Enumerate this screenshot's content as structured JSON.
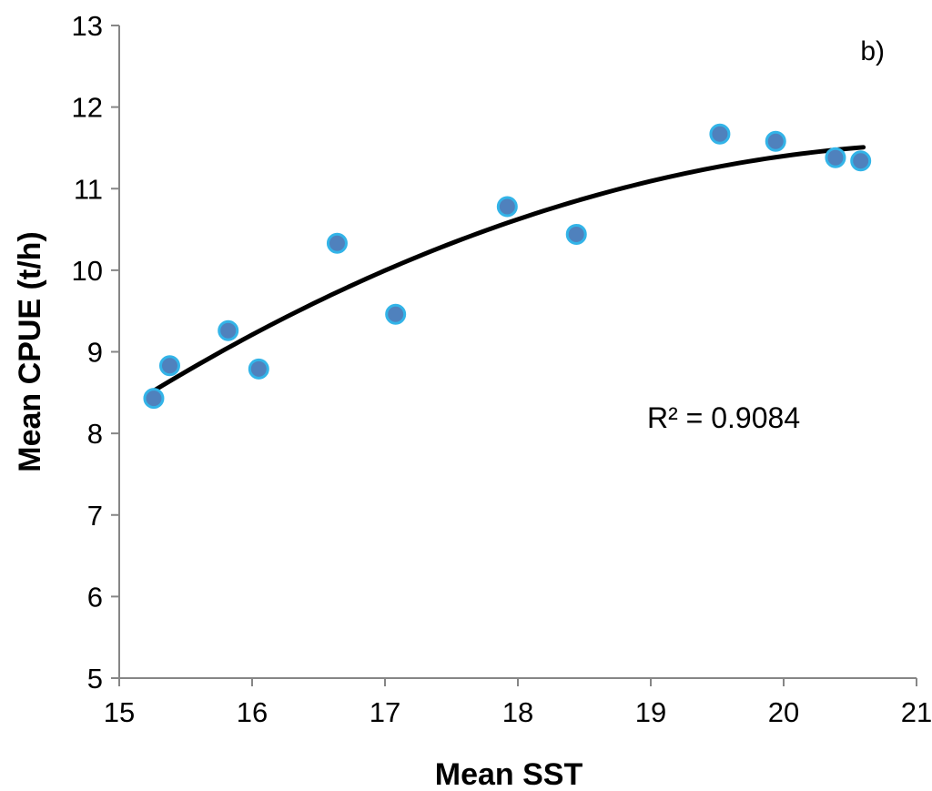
{
  "chart_data": {
    "type": "scatter",
    "title": "",
    "panel_label": "b)",
    "xlabel": "Mean SST",
    "ylabel": "Mean CPUE (t/h)",
    "xlim": [
      15,
      21
    ],
    "ylim": [
      5,
      13
    ],
    "xticks": [
      15,
      16,
      17,
      18,
      19,
      20,
      21
    ],
    "yticks": [
      5,
      6,
      7,
      8,
      9,
      10,
      11,
      12,
      13
    ],
    "grid": false,
    "legend": "none",
    "series": [
      {
        "marker_color": "#4f81bd",
        "marker_edge_color": "#33b4e8",
        "points": [
          {
            "x": 15.26,
            "y": 8.43
          },
          {
            "x": 15.38,
            "y": 8.83
          },
          {
            "x": 15.82,
            "y": 9.26
          },
          {
            "x": 16.05,
            "y": 8.79
          },
          {
            "x": 16.64,
            "y": 10.33
          },
          {
            "x": 17.08,
            "y": 9.46
          },
          {
            "x": 17.92,
            "y": 10.78
          },
          {
            "x": 18.44,
            "y": 10.44
          },
          {
            "x": 19.52,
            "y": 11.67
          },
          {
            "x": 19.94,
            "y": 11.58
          },
          {
            "x": 20.39,
            "y": 11.38
          },
          {
            "x": 20.58,
            "y": 11.34
          }
        ]
      }
    ],
    "trendline": {
      "type": "polynomial",
      "order": 2,
      "color": "#000000",
      "x_range": [
        15.26,
        20.6
      ],
      "curve": [
        {
          "x": 15.26,
          "y": 8.52
        },
        {
          "x": 16.0,
          "y": 9.21
        },
        {
          "x": 17.0,
          "y": 10.0
        },
        {
          "x": 18.0,
          "y": 10.63
        },
        {
          "x": 19.0,
          "y": 11.08
        },
        {
          "x": 20.0,
          "y": 11.4
        },
        {
          "x": 20.6,
          "y": 11.51
        }
      ]
    },
    "annotations": [
      {
        "text": "R² = 0.9084",
        "x": 19.0,
        "y": 8.2
      }
    ]
  }
}
